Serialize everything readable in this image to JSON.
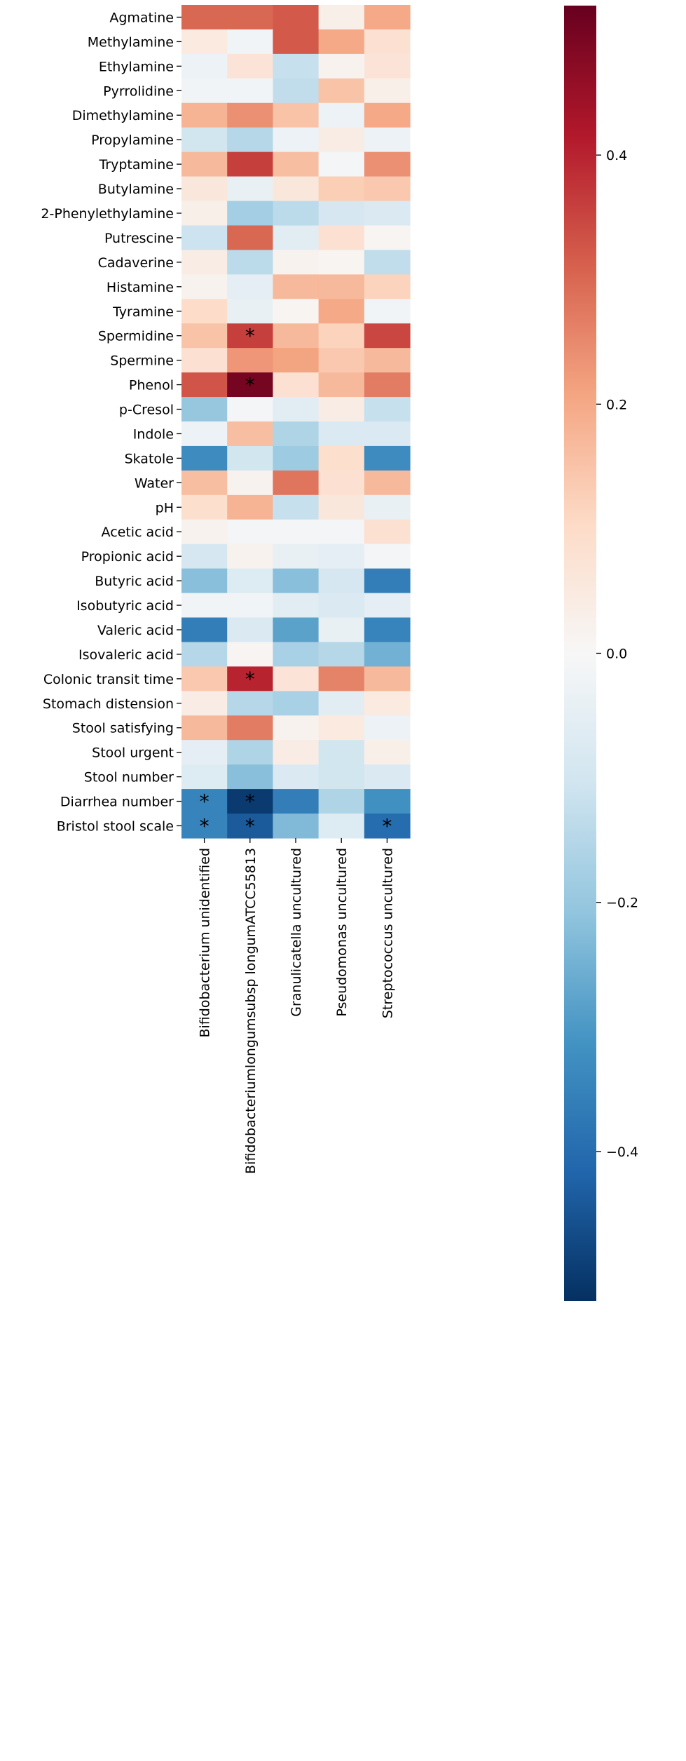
{
  "chart_data": {
    "type": "heatmap",
    "title": "",
    "xlabel": "",
    "ylabel": "",
    "x_categories": [
      "Bifidobacterium unidentified",
      "Bifidobacteriumlongumsubsp longumATCC55813",
      "Granulicatella uncultured",
      "Pseudomonas uncultured",
      "Streptococcus uncultured"
    ],
    "y_categories": [
      "Agmatine",
      "Methylamine",
      "Ethylamine",
      "Pyrrolidine",
      "Dimethylamine",
      "Propylamine",
      "Tryptamine",
      "Butylamine",
      "2-Phenylethylamine",
      "Putrescine",
      "Cadaverine",
      "Histamine",
      "Tyramine",
      "Spermidine",
      "Spermine",
      "Phenol",
      "p-Cresol",
      "Indole",
      "Skatole",
      "Water",
      "pH",
      "Acetic acid",
      "Propionic acid",
      "Butyric acid",
      "Isobutyric acid",
      "Valeric acid",
      "Isovaleric acid",
      "Colonic transit time",
      "Stomach distension",
      "Stool satisfying",
      "Stool urgent",
      "Stool number",
      "Diarrhea number",
      "Bristol stool scale"
    ],
    "values": [
      [
        0.3,
        0.3,
        0.32,
        0.03,
        0.2
      ],
      [
        0.05,
        -0.02,
        0.32,
        0.2,
        0.08
      ],
      [
        -0.03,
        0.07,
        -0.12,
        0.02,
        0.07
      ],
      [
        -0.02,
        -0.02,
        -0.13,
        0.15,
        0.03
      ],
      [
        0.18,
        0.24,
        0.15,
        -0.03,
        0.2
      ],
      [
        -0.1,
        -0.15,
        -0.03,
        0.04,
        -0.03
      ],
      [
        0.17,
        0.36,
        0.16,
        -0.01,
        0.24
      ],
      [
        0.06,
        -0.04,
        0.06,
        0.13,
        0.14
      ],
      [
        0.03,
        -0.18,
        -0.14,
        -0.09,
        -0.08
      ],
      [
        -0.11,
        0.3,
        -0.06,
        0.08,
        0.01
      ],
      [
        0.04,
        -0.14,
        0.02,
        0.01,
        -0.13
      ],
      [
        0.02,
        -0.05,
        0.17,
        0.17,
        0.12
      ],
      [
        0.1,
        -0.04,
        0.01,
        0.2,
        -0.02
      ],
      [
        0.15,
        0.36,
        0.17,
        0.12,
        0.35
      ],
      [
        0.08,
        0.23,
        0.21,
        0.14,
        0.17
      ],
      [
        0.33,
        0.5,
        0.08,
        0.17,
        0.27
      ],
      [
        -0.2,
        -0.01,
        -0.06,
        0.04,
        -0.12
      ],
      [
        -0.03,
        0.16,
        -0.16,
        -0.08,
        -0.08
      ],
      [
        -0.33,
        -0.1,
        -0.19,
        0.09,
        -0.33
      ],
      [
        0.16,
        0.02,
        0.28,
        0.08,
        0.17
      ],
      [
        0.09,
        0.18,
        -0.12,
        0.06,
        -0.04
      ],
      [
        0.02,
        -0.01,
        -0.01,
        -0.01,
        0.08
      ],
      [
        -0.09,
        0.02,
        -0.04,
        -0.05,
        -0.01
      ],
      [
        -0.22,
        -0.07,
        -0.22,
        -0.09,
        -0.36
      ],
      [
        -0.02,
        -0.02,
        -0.06,
        -0.08,
        -0.05
      ],
      [
        -0.36,
        -0.08,
        -0.28,
        -0.04,
        -0.35
      ],
      [
        -0.15,
        0.01,
        -0.17,
        -0.15,
        -0.25
      ],
      [
        0.14,
        0.4,
        0.07,
        0.26,
        0.17
      ],
      [
        0.04,
        -0.15,
        -0.17,
        -0.06,
        0.05
      ],
      [
        0.17,
        0.27,
        0.02,
        0.05,
        -0.03
      ],
      [
        -0.05,
        -0.16,
        0.04,
        -0.1,
        0.03
      ],
      [
        -0.07,
        -0.22,
        -0.08,
        -0.1,
        -0.08
      ],
      [
        -0.35,
        -0.5,
        -0.36,
        -0.16,
        -0.32
      ],
      [
        -0.35,
        -0.44,
        -0.23,
        -0.07,
        -0.4
      ]
    ],
    "significance": [
      [
        "",
        "",
        "",
        "",
        ""
      ],
      [
        "",
        "",
        "",
        "",
        ""
      ],
      [
        "",
        "",
        "",
        "",
        ""
      ],
      [
        "",
        "",
        "",
        "",
        ""
      ],
      [
        "",
        "",
        "",
        "",
        ""
      ],
      [
        "",
        "",
        "",
        "",
        ""
      ],
      [
        "",
        "",
        "",
        "",
        ""
      ],
      [
        "",
        "",
        "",
        "",
        ""
      ],
      [
        "",
        "",
        "",
        "",
        ""
      ],
      [
        "",
        "",
        "",
        "",
        ""
      ],
      [
        "",
        "",
        "",
        "",
        ""
      ],
      [
        "",
        "",
        "",
        "",
        ""
      ],
      [
        "",
        "",
        "",
        "",
        ""
      ],
      [
        "",
        "*",
        "",
        "",
        ""
      ],
      [
        "",
        "",
        "",
        "",
        ""
      ],
      [
        "",
        "*",
        "",
        "",
        ""
      ],
      [
        "",
        "",
        "",
        "",
        ""
      ],
      [
        "",
        "",
        "",
        "",
        ""
      ],
      [
        "",
        "",
        "",
        "",
        ""
      ],
      [
        "",
        "",
        "",
        "",
        ""
      ],
      [
        "",
        "",
        "",
        "",
        ""
      ],
      [
        "",
        "",
        "",
        "",
        ""
      ],
      [
        "",
        "",
        "",
        "",
        ""
      ],
      [
        "",
        "",
        "",
        "",
        ""
      ],
      [
        "",
        "",
        "",
        "",
        ""
      ],
      [
        "",
        "",
        "",
        "",
        ""
      ],
      [
        "",
        "",
        "",
        "",
        ""
      ],
      [
        "",
        "*",
        "",
        "",
        ""
      ],
      [
        "",
        "",
        "",
        "",
        ""
      ],
      [
        "",
        "",
        "",
        "",
        ""
      ],
      [
        "",
        "",
        "",
        "",
        ""
      ],
      [
        "",
        "",
        "",
        "",
        ""
      ],
      [
        "*",
        "*",
        "",
        "",
        ""
      ],
      [
        "*",
        "*",
        "",
        "",
        "*"
      ]
    ],
    "colorbar": {
      "range": [
        -0.52,
        0.52
      ],
      "ticks": [
        0.4,
        0.2,
        0.0,
        -0.2,
        -0.4
      ],
      "tick_labels": [
        "0.4",
        "0.2",
        "0.0",
        "−0.2",
        "−0.4"
      ],
      "colormap": "RdBu_r",
      "stops": [
        "#053061",
        "#2166ac",
        "#4393c3",
        "#92c5de",
        "#d1e5f0",
        "#f7f7f7",
        "#fddbc7",
        "#f4a582",
        "#d6604d",
        "#b2182b",
        "#67001f"
      ]
    }
  }
}
